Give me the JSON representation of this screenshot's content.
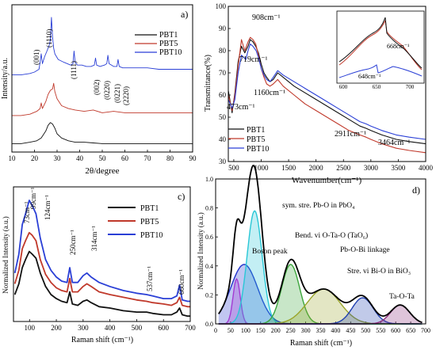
{
  "figure": {
    "colors": {
      "pbt1": "#111111",
      "pbt5": "#c0392b",
      "pbt10": "#2a3fd6",
      "fit_total": "#000000",
      "peak_magenta": "#d63fd6",
      "peak_blue": "#2233cc",
      "peak_cyan": "#29c7d6",
      "peak_green": "#3aa53a",
      "peak_olive": "#9aa52a",
      "peak_navy": "#1f3fb0",
      "peak_purple": "#8a2a7a"
    },
    "chart_data": [
      {
        "panel": "a)",
        "type": "line",
        "xlabel": "2θ/degree",
        "ylabel": "Intensity/a.u.",
        "xlim": [
          10,
          90
        ],
        "xticks": [
          10,
          20,
          30,
          40,
          50,
          60,
          70,
          80,
          90
        ],
        "yticks": "none",
        "legend_position": "top-right",
        "series": [
          {
            "name": "PBT1",
            "color_key": "pbt1",
            "x": [
              10,
              14,
              18,
              21,
              23,
              25,
              26,
              27,
              28,
              29,
              30,
              32,
              35,
              38,
              42,
              46,
              50,
              55,
              60,
              65,
              70,
              75,
              80,
              85,
              90
            ],
            "y": [
              0.06,
              0.06,
              0.07,
              0.08,
              0.1,
              0.15,
              0.19,
              0.21,
              0.2,
              0.17,
              0.13,
              0.1,
              0.08,
              0.07,
              0.07,
              0.065,
              0.06,
              0.06,
              0.06,
              0.06,
              0.06,
              0.06,
              0.06,
              0.06,
              0.06
            ]
          },
          {
            "name": "PBT5",
            "color_key": "pbt5",
            "x": [
              10,
              14,
              18,
              21,
              22.5,
              23,
              23.5,
              25,
              26,
              27,
              28,
              28.5,
              29,
              30,
              32,
              35,
              38,
              42,
              46,
              50,
              55,
              60,
              65,
              70,
              75,
              80,
              85,
              90
            ],
            "y": [
              0.26,
              0.26,
              0.27,
              0.29,
              0.31,
              0.35,
              0.31,
              0.36,
              0.41,
              0.44,
              0.45,
              0.49,
              0.43,
              0.38,
              0.33,
              0.31,
              0.3,
              0.29,
              0.3,
              0.28,
              0.29,
              0.28,
              0.28,
              0.28,
              0.28,
              0.28,
              0.28,
              0.28
            ]
          },
          {
            "name": "PBT10",
            "color_key": "pbt10",
            "x": [
              10,
              14,
              18,
              20,
              22,
              22.5,
              23,
              23.5,
              24.5,
              25.5,
              26.5,
              27,
              27.5,
              28,
              28.5,
              29,
              30.5,
              33,
              36,
              37,
              37.5,
              38,
              39,
              41,
              43,
              45,
              46.5,
              47,
              47.5,
              49,
              51,
              52,
              52.5,
              53,
              55,
              56.5,
              57,
              57.5,
              59,
              62,
              66,
              70,
              75,
              80,
              85,
              90
            ],
            "y": [
              0.55,
              0.55,
              0.56,
              0.57,
              0.59,
              0.64,
              0.7,
              0.63,
              0.68,
              0.72,
              0.76,
              0.8,
              0.96,
              0.82,
              0.74,
              0.7,
              0.66,
              0.64,
              0.62,
              0.63,
              0.72,
              0.64,
              0.62,
              0.62,
              0.61,
              0.61,
              0.62,
              0.67,
              0.62,
              0.61,
              0.62,
              0.63,
              0.69,
              0.63,
              0.61,
              0.61,
              0.66,
              0.61,
              0.6,
              0.6,
              0.6,
              0.6,
              0.59,
              0.59,
              0.59,
              0.59
            ]
          }
        ],
        "annotations": [
          {
            "text": "(001)",
            "x": 22.8
          },
          {
            "text": "(1110)",
            "x": 27.8
          },
          {
            "text": "(1111)",
            "x": 37.2
          },
          {
            "text": "(002)",
            "x": 46.5
          },
          {
            "text": "(0220)",
            "x": 51.5
          },
          {
            "text": "(0221)",
            "x": 56.0
          },
          {
            "text": "(2220)",
            "x": 59.5
          }
        ]
      },
      {
        "panel": "b)",
        "type": "line",
        "xlabel": "Wavenumber(cm⁻¹)",
        "ylabel": "Transmittance(%)",
        "xlim": [
          400,
          4000
        ],
        "ylim": [
          30,
          100
        ],
        "xticks": [
          500,
          1000,
          1500,
          2000,
          2500,
          3000,
          3500,
          4000
        ],
        "yticks": [
          30,
          40,
          50,
          60,
          70,
          80,
          90,
          100
        ],
        "legend_position": "bottom-left",
        "series": [
          {
            "name": "PBT1",
            "color_key": "pbt1",
            "x": [
              400,
              470,
              520,
              580,
              640,
              700,
              760,
              800,
              850,
              900,
              950,
              1000,
              1050,
              1100,
              1160,
              1220,
              1300,
              1400,
              1600,
              1800,
              2000,
              2200,
              2400,
              2600,
              2800,
              2911,
              3000,
              3200,
              3464,
              3700,
              4000
            ],
            "y": [
              62,
              52,
              61,
              75,
              82,
              79,
              82,
              85,
              84,
              82,
              79,
              74,
              70,
              68,
              66,
              67,
              70,
              68,
              64,
              61,
              58,
              55,
              52,
              49,
              46,
              45,
              44,
              42,
              40,
              39,
              38
            ]
          },
          {
            "name": "PBT5",
            "color_key": "pbt5",
            "x": [
              400,
              470,
              520,
              580,
              640,
              700,
              760,
              800,
              850,
              900,
              950,
              1000,
              1050,
              1100,
              1160,
              1220,
              1300,
              1400,
              1600,
              1800,
              2000,
              2200,
              2400,
              2600,
              2800,
              2911,
              3000,
              3200,
              3464,
              3700,
              4000
            ],
            "y": [
              60,
              53,
              60,
              73,
              85,
              80,
              84,
              86,
              85,
              83,
              78,
              72,
              68,
              65,
              64,
              65,
              67,
              64,
              60,
              56,
              53,
              50,
              47,
              44,
              42,
              41,
              40,
              38,
              36,
              35,
              34
            ]
          },
          {
            "name": "PBT10",
            "color_key": "pbt10",
            "x": [
              400,
              470,
              520,
              580,
              640,
              719,
              760,
              800,
              850,
              908,
              950,
              1000,
              1050,
              1100,
              1160,
              1220,
              1300,
              1400,
              1600,
              1800,
              2000,
              2200,
              2400,
              2600,
              2800,
              2911,
              3000,
              3200,
              3464,
              3700,
              4000
            ],
            "y": [
              58,
              54,
              58,
              70,
              78,
              76,
              80,
              83,
              82,
              80,
              77,
              72,
              69,
              67,
              66,
              68,
              71,
              69,
              66,
              63,
              60,
              57,
              54,
              51,
              48,
              47,
              46,
              44,
              42,
              41,
              40
            ]
          }
        ],
        "annotations": [
          {
            "text": "908cm⁻¹"
          },
          {
            "text": "719cm⁻¹"
          },
          {
            "text": "473cm⁻¹"
          },
          {
            "text": "1160cm⁻¹"
          },
          {
            "text": "2911cm⁻¹"
          },
          {
            "text": "3464cm⁻¹"
          }
        ],
        "inset": {
          "xlim": [
            600,
            730
          ],
          "xticks": [
            600,
            650,
            700
          ],
          "annotations": [
            "668cm⁻¹",
            "648cm⁻¹"
          ]
        }
      },
      {
        "panel": "c)",
        "type": "line",
        "xlabel": "Raman shift (cm⁻¹)",
        "ylabel": "Normalized Intensity (a.u.)",
        "xlim": [
          40,
          700
        ],
        "xticks": [
          100,
          200,
          300,
          400,
          500,
          600,
          700
        ],
        "yticks": "none",
        "legend_position": "top-right",
        "series": [
          {
            "name": "PBT1",
            "color_key": "pbt1",
            "x": [
              45,
              60,
              73,
              85,
              99,
              110,
              124,
              140,
              160,
              180,
              200,
              220,
              240,
              250,
              260,
              280,
              300,
              314,
              330,
              360,
              400,
              450,
              500,
              537,
              560,
              600,
              630,
              650,
              660,
              670,
              690,
              700
            ],
            "y": [
              0.2,
              0.28,
              0.4,
              0.46,
              0.52,
              0.5,
              0.47,
              0.36,
              0.26,
              0.2,
              0.17,
              0.15,
              0.14,
              0.22,
              0.13,
              0.12,
              0.15,
              0.16,
              0.14,
              0.11,
              0.1,
              0.08,
              0.07,
              0.07,
              0.06,
              0.05,
              0.05,
              0.07,
              0.1,
              0.05,
              0.04,
              0.04
            ]
          },
          {
            "name": "PBT5",
            "color_key": "pbt5",
            "x": [
              45,
              60,
              73,
              85,
              99,
              110,
              124,
              140,
              160,
              180,
              200,
              220,
              240,
              250,
              260,
              280,
              300,
              314,
              330,
              360,
              400,
              450,
              500,
              537,
              560,
              600,
              630,
              650,
              660,
              670,
              690,
              700
            ],
            "y": [
              0.28,
              0.38,
              0.54,
              0.6,
              0.66,
              0.64,
              0.6,
              0.46,
              0.35,
              0.29,
              0.25,
              0.23,
              0.22,
              0.32,
              0.22,
              0.22,
              0.26,
              0.28,
              0.26,
              0.22,
              0.2,
              0.18,
              0.16,
              0.15,
              0.14,
              0.13,
              0.12,
              0.14,
              0.18,
              0.12,
              0.11,
              0.11
            ]
          },
          {
            "name": "PBT10",
            "color_key": "pbt10",
            "x": [
              45,
              60,
              73,
              85,
              99,
              110,
              124,
              140,
              160,
              180,
              200,
              220,
              240,
              250,
              260,
              280,
              300,
              314,
              330,
              360,
              400,
              450,
              500,
              537,
              560,
              600,
              630,
              650,
              660,
              670,
              690,
              700
            ],
            "y": [
              0.36,
              0.5,
              0.72,
              0.8,
              0.9,
              0.86,
              0.8,
              0.62,
              0.46,
              0.38,
              0.33,
              0.3,
              0.29,
              0.4,
              0.29,
              0.29,
              0.34,
              0.36,
              0.33,
              0.29,
              0.26,
              0.23,
              0.21,
              0.2,
              0.19,
              0.17,
              0.17,
              0.19,
              0.27,
              0.16,
              0.15,
              0.15
            ]
          }
        ],
        "annotations": [
          {
            "text": "73cm⁻¹"
          },
          {
            "text": "99cm⁻¹"
          },
          {
            "text": "124cm⁻¹"
          },
          {
            "text": "250cm⁻¹"
          },
          {
            "text": "314cm⁻¹"
          },
          {
            "text": "537cm⁻¹"
          },
          {
            "text": "660cm⁻¹"
          }
        ]
      },
      {
        "panel": "d)",
        "type": "area",
        "xlabel": "Raman shift (cm⁻¹)",
        "ylabel": "Normalized Intensity (a.u.)",
        "xlim": [
          0,
          700
        ],
        "ylim": [
          0,
          1.0
        ],
        "xticks": [
          0,
          50,
          100,
          150,
          200,
          250,
          300,
          350,
          400,
          450,
          500,
          550,
          600,
          650,
          700
        ],
        "yticks": [
          0.0,
          0.2,
          0.4,
          0.6,
          0.8,
          1.0
        ],
        "peaks": [
          {
            "center": 70,
            "height": 0.31,
            "width": 12,
            "color_key": "peak_magenta"
          },
          {
            "center": 95,
            "height": 0.41,
            "width": 45,
            "color_key": "peak_blue"
          },
          {
            "center": 130,
            "height": 0.78,
            "width": 25,
            "color_key": "peak_cyan"
          },
          {
            "center": 250,
            "height": 0.41,
            "width": 30,
            "color_key": "peak_green"
          },
          {
            "center": 360,
            "height": 0.24,
            "width": 55,
            "color_key": "peak_olive"
          },
          {
            "center": 490,
            "height": 0.18,
            "width": 35,
            "color_key": "peak_navy"
          },
          {
            "center": 615,
            "height": 0.13,
            "width": 32,
            "color_key": "peak_purple"
          }
        ],
        "annotations": [
          {
            "text": "sym. stre. Pb-O in PbO₄"
          },
          {
            "text": "Boson peak"
          },
          {
            "text": "Bend. vi O-Ta-O (TaO₆)"
          },
          {
            "text": "Pb-O-Bi linkage"
          },
          {
            "text": "Stre. vi Bi-O in BiO₃"
          },
          {
            "text": "Ta-O-Ta"
          }
        ]
      }
    ]
  }
}
